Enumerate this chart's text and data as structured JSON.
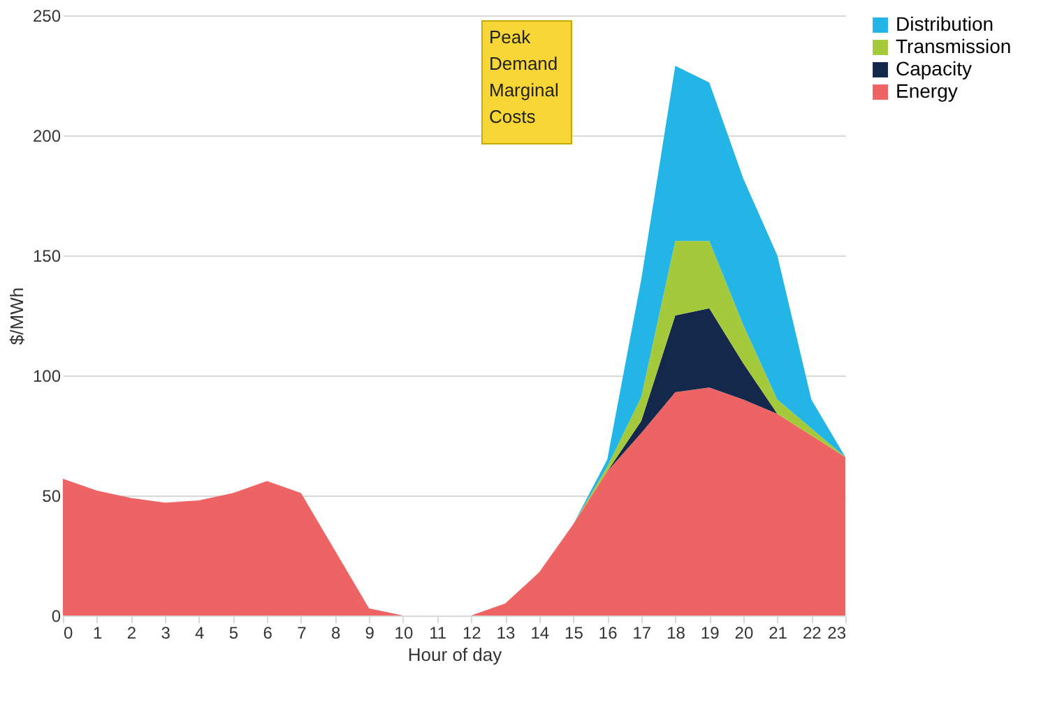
{
  "chart_data": {
    "type": "area",
    "stacked": true,
    "xlabel": "Hour of day",
    "ylabel": "$/MWh",
    "x": [
      0,
      1,
      2,
      3,
      4,
      5,
      6,
      7,
      8,
      9,
      10,
      11,
      12,
      13,
      14,
      15,
      16,
      17,
      18,
      19,
      20,
      21,
      22,
      23
    ],
    "xlim": [
      0,
      23
    ],
    "xticks": [
      0,
      1,
      2,
      3,
      4,
      5,
      6,
      7,
      8,
      9,
      10,
      11,
      12,
      13,
      14,
      15,
      16,
      17,
      18,
      19,
      20,
      21,
      22,
      23
    ],
    "ylim": [
      0,
      250
    ],
    "yticks": [
      0,
      50,
      100,
      150,
      200,
      250
    ],
    "grid": "y",
    "legend": "right",
    "series": [
      {
        "name": "Energy",
        "color": "#ee6363",
        "values": [
          57,
          52,
          49,
          47,
          48,
          51,
          56,
          51,
          27,
          3,
          0,
          0,
          0,
          5,
          18,
          38,
          60,
          76,
          93,
          95,
          90,
          84,
          75,
          66
        ]
      },
      {
        "name": "Capacity",
        "color": "#14284b",
        "values": [
          0,
          0,
          0,
          0,
          0,
          0,
          0,
          0,
          0,
          0,
          0,
          0,
          0,
          0,
          0,
          0,
          0,
          5,
          32,
          33,
          15,
          0,
          0,
          0
        ]
      },
      {
        "name": "Transmission",
        "color": "#a4c93a",
        "values": [
          0,
          0,
          0,
          0,
          0,
          0,
          0,
          0,
          0,
          0,
          0,
          0,
          0,
          0,
          0,
          0,
          2,
          10,
          31,
          28,
          16,
          6,
          3,
          0
        ]
      },
      {
        "name": "Distribution",
        "color": "#22b5e6",
        "values": [
          0,
          0,
          0,
          0,
          0,
          0,
          0,
          0,
          0,
          0,
          0,
          0,
          0,
          0,
          0,
          0,
          3,
          49,
          73,
          66,
          61,
          60,
          12,
          0
        ]
      }
    ],
    "annotations": [
      "Peak Demand Marginal Costs"
    ]
  }
}
